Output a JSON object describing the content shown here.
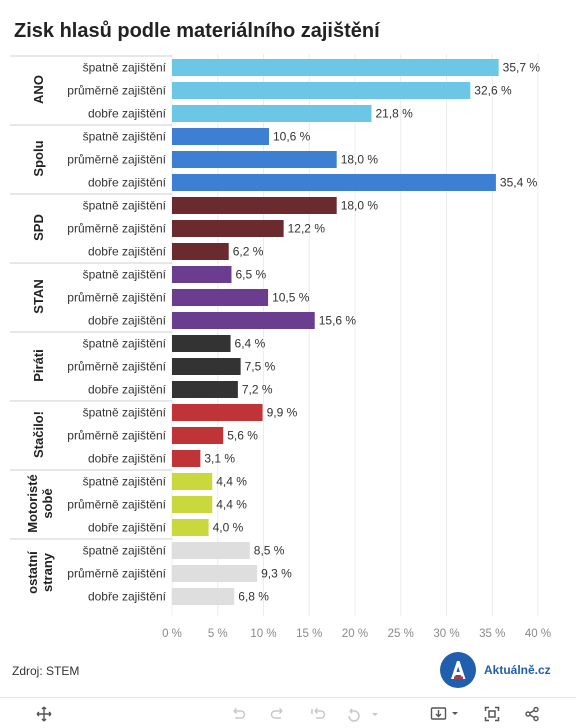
{
  "title": "Zisk hlasů podle materiálního zajištění",
  "source": "Zdroj: STEM",
  "brand": {
    "name": "Aktuálně.cz",
    "icon": "aktualne-logo-icon",
    "color": "#1f5fae"
  },
  "footer": {
    "icons": [
      "move-icon",
      "undo-icon",
      "redo-icon",
      "revert-icon",
      "refresh-icon",
      "download-icon",
      "fullscreen-icon",
      "share-icon"
    ]
  },
  "chart_data": {
    "type": "bar",
    "orientation": "horizontal",
    "title": "Zisk hlasů podle materiálního zajištění",
    "xlim": [
      0,
      40
    ],
    "x_ticks": [
      "0 %",
      "5 %",
      "10 %",
      "15 %",
      "20 %",
      "25 %",
      "30 %",
      "35 %",
      "40 %"
    ],
    "grid": true,
    "groups": [
      {
        "name": [
          "ANO"
        ],
        "color": "#6cc6e6",
        "bars": [
          {
            "label": "špatně zajištění",
            "value": 35.7,
            "text": "35,7 %"
          },
          {
            "label": "průměrně zajištění",
            "value": 32.6,
            "text": "32,6 %"
          },
          {
            "label": "dobře zajištění",
            "value": 21.8,
            "text": "21,8 %"
          }
        ]
      },
      {
        "name": [
          "Spolu"
        ],
        "color": "#3d7fd2",
        "bars": [
          {
            "label": "špatně zajištění",
            "value": 10.6,
            "text": "10,6 %"
          },
          {
            "label": "průměrně zajištění",
            "value": 18.0,
            "text": "18,0 %"
          },
          {
            "label": "dobře zajištění",
            "value": 35.4,
            "text": "35,4 %"
          }
        ]
      },
      {
        "name": [
          "SPD"
        ],
        "color": "#6b2a2d",
        "bars": [
          {
            "label": "špatně zajištění",
            "value": 18.0,
            "text": "18,0 %"
          },
          {
            "label": "průměrně zajištění",
            "value": 12.2,
            "text": "12,2 %"
          },
          {
            "label": "dobře zajištění",
            "value": 6.2,
            "text": "6,2 %"
          }
        ]
      },
      {
        "name": [
          "STAN"
        ],
        "color": "#6a3d8f",
        "bars": [
          {
            "label": "špatně zajištění",
            "value": 6.5,
            "text": "6,5 %"
          },
          {
            "label": "průměrně zajištění",
            "value": 10.5,
            "text": "10,5 %"
          },
          {
            "label": "dobře zajištění",
            "value": 15.6,
            "text": "15,6 %"
          }
        ]
      },
      {
        "name": [
          "Piráti"
        ],
        "color": "#333333",
        "bars": [
          {
            "label": "špatně zajištění",
            "value": 6.4,
            "text": "6,4 %"
          },
          {
            "label": "průměrně zajištění",
            "value": 7.5,
            "text": "7,5 %"
          },
          {
            "label": "dobře zajištění",
            "value": 7.2,
            "text": "7,2 %"
          }
        ]
      },
      {
        "name": [
          "Stačilo!"
        ],
        "color": "#c03438",
        "bars": [
          {
            "label": "špatně zajištění",
            "value": 9.9,
            "text": "9,9 %"
          },
          {
            "label": "průměrně zajištění",
            "value": 5.6,
            "text": "5,6 %"
          },
          {
            "label": "dobře zajištění",
            "value": 3.1,
            "text": "3,1 %"
          }
        ]
      },
      {
        "name": [
          "Motoristé",
          "sobě"
        ],
        "color": "#c9d83c",
        "bars": [
          {
            "label": "špatně zajištění",
            "value": 4.4,
            "text": "4,4 %"
          },
          {
            "label": "průměrně zajištění",
            "value": 4.4,
            "text": "4,4 %"
          },
          {
            "label": "dobře zajištění",
            "value": 4.0,
            "text": "4,0 %"
          }
        ]
      },
      {
        "name": [
          "ostatní",
          "strany"
        ],
        "color": "#dedede",
        "bars": [
          {
            "label": "špatně zajištění",
            "value": 8.5,
            "text": "8,5 %"
          },
          {
            "label": "průměrně zajištění",
            "value": 9.3,
            "text": "9,3 %"
          },
          {
            "label": "dobře zajištění",
            "value": 6.8,
            "text": "6,8 %"
          }
        ]
      }
    ]
  }
}
